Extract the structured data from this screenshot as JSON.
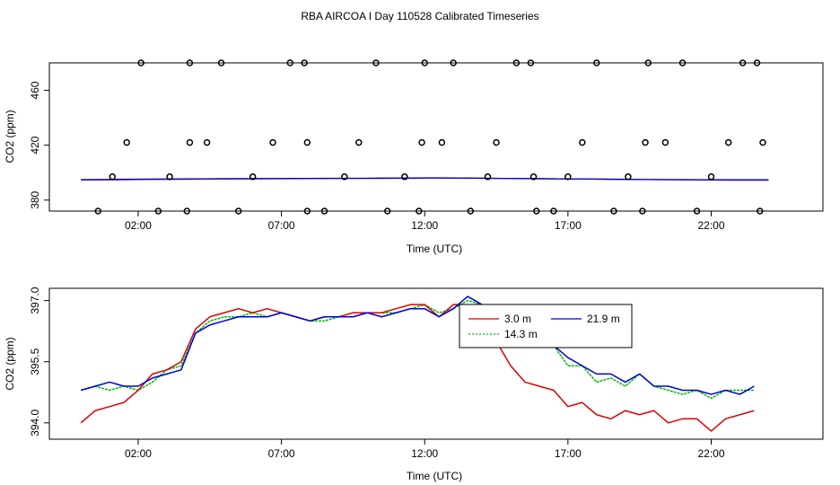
{
  "title": "RBA AIRCOA I  Day 110528  Calibrated Timeseries",
  "colors": {
    "s1": "#dd0000",
    "s2": "#00bb00",
    "s3": "#0000dd",
    "marker": "#000000"
  },
  "chart_data": [
    {
      "type": "scatter",
      "title": "",
      "xlabel": "Time (UTC)",
      "ylabel": "CO2 (ppm)",
      "xlim": [
        -1.1,
        25.9
      ],
      "ylim": [
        372,
        480
      ],
      "xticks": [
        2,
        7,
        12,
        17,
        22
      ],
      "xtick_labels": [
        "02:00",
        "07:00",
        "12:00",
        "17:00",
        "22:00"
      ],
      "yticks": [
        380,
        420,
        460
      ],
      "ytick_labels": [
        "380",
        "420",
        "460"
      ],
      "points": {
        "x": [
          0.6,
          1.1,
          1.6,
          2.1,
          2.7,
          3.1,
          3.7,
          3.8,
          3.8,
          4.4,
          4.9,
          5.5,
          6.0,
          6.7,
          7.3,
          7.8,
          7.9,
          7.9,
          8.5,
          9.2,
          9.7,
          10.3,
          10.7,
          11.3,
          11.8,
          11.9,
          12.0,
          12.6,
          13.0,
          13.6,
          14.2,
          14.5,
          15.2,
          15.7,
          15.8,
          15.9,
          16.5,
          17.0,
          17.5,
          18.0,
          18.6,
          19.1,
          19.6,
          19.7,
          19.8,
          20.4,
          21.0,
          21.5,
          22.0,
          22.6,
          23.1,
          23.6,
          23.7,
          23.8
        ],
        "y": [
          372,
          397,
          422,
          480,
          372,
          397,
          372,
          422,
          480,
          422,
          480,
          372,
          397,
          422,
          480,
          480,
          422,
          372,
          372,
          397,
          422,
          480,
          372,
          397,
          372,
          422,
          480,
          422,
          480,
          372,
          397,
          422,
          480,
          480,
          397,
          372,
          372,
          397,
          422,
          480,
          372,
          397,
          372,
          422,
          480,
          422,
          480,
          372,
          397,
          422,
          480,
          480,
          372,
          422
        ]
      },
      "series": [
        {
          "name": "3.0 m",
          "values": [
            394.6,
            394.7,
            394.8,
            394.9,
            395.0,
            395.1,
            395.2,
            395.3,
            395.4,
            395.5,
            395.5,
            395.6,
            395.6,
            395.7,
            395.7,
            395.8,
            395.8,
            395.8,
            395.9,
            395.9,
            396.0,
            396.1,
            396.0,
            395.9,
            395.8,
            395.7,
            395.6,
            395.5,
            395.4,
            395.3,
            395.2,
            395.1,
            395.0,
            394.9,
            394.8,
            394.7,
            394.6,
            394.5,
            394.5,
            394.5
          ]
        },
        {
          "name": "14.3 m",
          "values": [
            394.8,
            394.9,
            395.0,
            395.1,
            395.2,
            395.3,
            395.4,
            395.5,
            395.5,
            395.6,
            395.6,
            395.7,
            395.7,
            395.8,
            395.8,
            395.8,
            395.9,
            395.9,
            396.0,
            396.0,
            396.1,
            396.1,
            396.0,
            395.9,
            395.8,
            395.7,
            395.6,
            395.5,
            395.4,
            395.3,
            395.2,
            395.1,
            395.0,
            394.9,
            394.9,
            394.8,
            394.8,
            394.7,
            394.7,
            394.7
          ]
        },
        {
          "name": "21.9 m",
          "values": [
            394.9,
            395.0,
            395.1,
            395.2,
            395.3,
            395.4,
            395.5,
            395.5,
            395.6,
            395.6,
            395.7,
            395.7,
            395.8,
            395.8,
            395.9,
            395.9,
            395.9,
            396.0,
            396.0,
            396.1,
            396.2,
            396.1,
            396.0,
            395.9,
            395.8,
            395.7,
            395.6,
            395.5,
            395.4,
            395.3,
            395.2,
            395.1,
            395.0,
            394.9,
            394.9,
            394.8,
            394.8,
            394.8,
            394.8,
            394.8
          ]
        }
      ]
    },
    {
      "type": "line",
      "title": "",
      "xlabel": "Time (UTC)",
      "ylabel": "CO2 (ppm)",
      "xlim": [
        -1.1,
        25.9
      ],
      "ylim": [
        393.6,
        397.3
      ],
      "xticks": [
        2,
        7,
        12,
        17,
        22
      ],
      "xtick_labels": [
        "02:00",
        "07:00",
        "12:00",
        "17:00",
        "22:00"
      ],
      "yticks": [
        394.0,
        395.5,
        397.0
      ],
      "ytick_labels": [
        "394.0",
        "395.5",
        "397.0"
      ],
      "legend": {
        "placement": "top-center",
        "entries": [
          "3.0 m",
          "21.9 m",
          "14.3 m"
        ]
      },
      "series": [
        {
          "name": "3.0 m",
          "color": "#dd0000",
          "x": [
            0,
            0.5,
            1,
            1.5,
            2,
            2.5,
            3,
            3.5,
            4,
            4.5,
            5,
            5.5,
            6,
            6.5,
            7,
            7.5,
            8,
            8.5,
            9,
            9.5,
            10,
            10.5,
            11,
            11.5,
            12,
            12.5,
            13,
            13.5,
            14,
            14.5,
            15,
            15.5,
            16,
            16.5,
            17,
            17.5,
            18,
            18.5,
            19,
            19.5,
            20,
            20.5,
            21,
            21.5,
            22,
            22.5,
            23,
            23.5
          ],
          "y": [
            394.0,
            394.3,
            394.4,
            394.5,
            394.8,
            395.2,
            395.3,
            395.5,
            396.3,
            396.6,
            396.7,
            396.8,
            396.7,
            396.8,
            396.7,
            396.6,
            396.5,
            396.6,
            396.6,
            396.7,
            396.7,
            396.7,
            396.8,
            396.9,
            396.9,
            396.6,
            396.9,
            396.9,
            396.5,
            396.0,
            395.4,
            395.0,
            394.9,
            394.8,
            394.4,
            394.5,
            394.2,
            394.1,
            394.3,
            394.2,
            394.3,
            394.0,
            394.1,
            394.1,
            393.8,
            394.1,
            394.2,
            394.3
          ]
        },
        {
          "name": "14.3 m",
          "color": "#00bb00",
          "x": [
            0,
            0.5,
            1,
            1.5,
            2,
            2.5,
            3,
            3.5,
            4,
            4.5,
            5,
            5.5,
            6,
            6.5,
            7,
            7.5,
            8,
            8.5,
            9,
            9.5,
            10,
            10.5,
            11,
            11.5,
            12,
            12.5,
            13,
            13.5,
            14,
            14.5,
            15,
            15.5,
            16,
            16.5,
            17,
            17.5,
            18,
            18.5,
            19,
            19.5,
            20,
            20.5,
            21,
            21.5,
            22,
            22.5,
            23,
            23.5
          ],
          "y": [
            394.8,
            394.9,
            394.8,
            394.9,
            394.8,
            395.0,
            395.3,
            395.4,
            396.2,
            396.5,
            396.6,
            396.6,
            396.7,
            396.6,
            396.7,
            396.6,
            396.5,
            396.5,
            396.6,
            396.6,
            396.7,
            396.7,
            396.7,
            396.8,
            396.9,
            396.7,
            396.8,
            397.0,
            396.9,
            396.6,
            396.3,
            396.1,
            396.0,
            395.9,
            395.4,
            395.4,
            395.0,
            395.1,
            394.9,
            395.2,
            394.9,
            394.8,
            394.7,
            394.8,
            394.6,
            394.8,
            394.8,
            394.8
          ]
        },
        {
          "name": "21.9 m",
          "color": "#0000dd",
          "x": [
            0,
            0.5,
            1,
            1.5,
            2,
            2.5,
            3,
            3.5,
            4,
            4.5,
            5,
            5.5,
            6,
            6.5,
            7,
            7.5,
            8,
            8.5,
            9,
            9.5,
            10,
            10.5,
            11,
            11.5,
            12,
            12.5,
            13,
            13.5,
            14,
            14.5,
            15,
            15.5,
            16,
            16.5,
            17,
            17.5,
            18,
            18.5,
            19,
            19.5,
            20,
            20.5,
            21,
            21.5,
            22,
            22.5,
            23,
            23.5
          ],
          "y": [
            394.8,
            394.9,
            395.0,
            394.9,
            394.9,
            395.1,
            395.2,
            395.3,
            396.2,
            396.4,
            396.5,
            396.6,
            396.6,
            396.6,
            396.7,
            396.6,
            396.5,
            396.6,
            396.6,
            396.6,
            396.7,
            396.6,
            396.7,
            396.8,
            396.8,
            396.6,
            396.8,
            397.1,
            396.9,
            396.7,
            396.4,
            396.2,
            396.2,
            395.9,
            395.6,
            395.4,
            395.2,
            395.2,
            395.0,
            395.2,
            394.9,
            394.9,
            394.8,
            394.8,
            394.7,
            394.8,
            394.7,
            394.9
          ]
        }
      ]
    }
  ]
}
